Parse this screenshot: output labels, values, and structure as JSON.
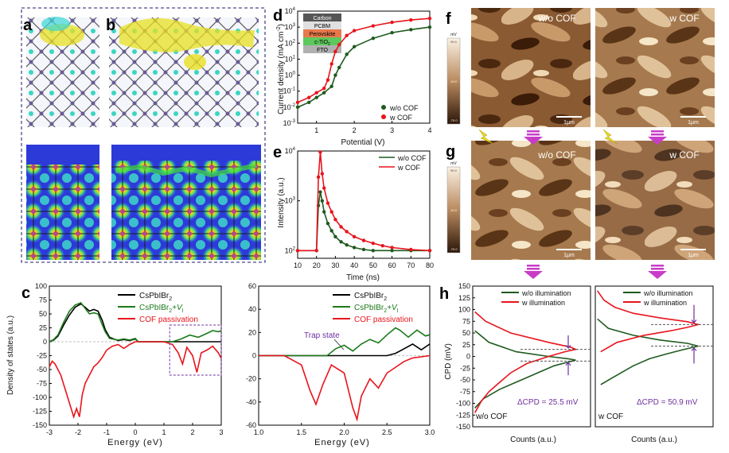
{
  "panel_letters": {
    "a": "a",
    "b": "b",
    "c": "c",
    "d": "d",
    "e": "e",
    "f": "f",
    "g": "g",
    "h": "h"
  },
  "colors": {
    "black": "#000000",
    "green": "#1a7a1a",
    "red": "#e8141c",
    "dark_green": "#1f5a1f",
    "purple": "#7030a0",
    "magenta_arrow": "#c83cc8",
    "frame": "#4a4a8a"
  },
  "panel_c": {
    "legend": [
      "CsPbIBr",
      "CsPbIBr2+V",
      "COF passivation"
    ],
    "legend_parts": {
      "cs": "CsPbIBr",
      "sub2": "2",
      "vi": "+V",
      "subi": "I"
    },
    "ylabel": "Density of states (a.u.)",
    "xlabel": "Energy (eV)",
    "trap_label": "Trap state"
  },
  "panel_d": {
    "ylabel": "Current density (mA cm",
    "ylabel_sup": "-2",
    "xlabel": "Potential (V)",
    "device_layers": [
      "Carbon",
      "PCBM",
      "Perovskite",
      "c-TiO",
      "FTO"
    ],
    "device_sub": "2",
    "legend": [
      "w/o COF",
      "w COF"
    ]
  },
  "panel_e": {
    "ylabel": "Intensity (a.u.)",
    "xlabel": "Time (ns)",
    "legend": [
      "w/o COF",
      "w COF"
    ]
  },
  "panel_fg": {
    "labels": [
      "w/o COF",
      "w COF"
    ],
    "scalebar": "1μm",
    "colorbar_unit": "mV",
    "colorbar_ticks": [
      "90.0",
      "10.0",
      "-70.0"
    ]
  },
  "panel_h": {
    "ylabel": "CPD (mV)",
    "xlabel": "Counts (a.u.)",
    "legend": [
      "w/o illumination",
      "w illumination"
    ],
    "dcpd_left": "ΔCPD = 25.5 mV",
    "dcpd_right": "ΔCPD = 50.9 mV",
    "left_label": "w/o COF",
    "right_label": "w COF"
  },
  "chart_data": [
    {
      "type": "line",
      "id": "c-left",
      "title": "",
      "xlabel": "Energy (eV)",
      "ylabel": "Density of states (a.u.)",
      "xlim": [
        -3,
        3
      ],
      "ylim": [
        -150,
        100
      ],
      "xticks": [
        -3,
        -2,
        -1,
        0,
        1,
        2,
        3
      ],
      "yticks": [
        -150,
        -125,
        -100,
        -75,
        -50,
        -25,
        0,
        25,
        50,
        75,
        100
      ],
      "series": [
        {
          "name": "CsPbIBr2",
          "color": "#000000",
          "x": [
            -3,
            -2.85,
            -2.7,
            -2.5,
            -2.3,
            -2.1,
            -1.9,
            -1.75,
            -1.6,
            -1.45,
            -1.3,
            -1.15,
            -1.05,
            -0.9,
            -0.6,
            -0.4,
            -0.2,
            0,
            0.1,
            0.2,
            0.5,
            1.0,
            1.5,
            2.0,
            2.5,
            3.0
          ],
          "y": [
            0,
            3,
            10,
            30,
            48,
            62,
            68,
            62,
            55,
            58,
            55,
            38,
            22,
            8,
            2,
            4,
            2,
            5,
            0,
            0,
            0,
            0,
            0,
            0,
            0,
            0
          ]
        },
        {
          "name": "CsPbIBr2+VI",
          "color": "#1a7a1a",
          "x": [
            -3,
            -2.85,
            -2.7,
            -2.5,
            -2.3,
            -2.1,
            -1.9,
            -1.75,
            -1.6,
            -1.45,
            -1.3,
            -1.15,
            -1.05,
            -0.9,
            -0.6,
            -0.4,
            -0.2,
            0,
            0.1,
            0.2,
            0.5,
            1.0,
            1.3,
            1.6,
            1.9,
            2.2,
            2.5,
            2.7,
            2.9,
            3.0
          ],
          "y": [
            0,
            4,
            12,
            35,
            55,
            66,
            70,
            60,
            50,
            52,
            50,
            30,
            18,
            6,
            3,
            5,
            3,
            6,
            0,
            0,
            0,
            0,
            0,
            5,
            12,
            8,
            15,
            20,
            18,
            20
          ]
        },
        {
          "name": "COF passivation",
          "color": "#e8141c",
          "x": [
            -3,
            -2.9,
            -2.8,
            -2.6,
            -2.45,
            -2.3,
            -2.15,
            -2.05,
            -1.95,
            -1.85,
            -1.75,
            -1.6,
            -1.45,
            -1.3,
            -1.15,
            -1.0,
            -0.8,
            -0.6,
            -0.4,
            -0.2,
            0,
            0.5,
            1.0,
            1.3,
            1.5,
            1.65,
            1.8,
            2.0,
            2.15,
            2.3,
            2.5,
            2.7,
            2.9,
            3.0
          ],
          "y": [
            -45,
            -35,
            -40,
            -60,
            -85,
            -110,
            -135,
            -120,
            -135,
            -95,
            -75,
            -60,
            -45,
            -38,
            -28,
            -15,
            -8,
            -5,
            -12,
            -5,
            0,
            0,
            0,
            -5,
            -20,
            -40,
            -10,
            -25,
            -55,
            -20,
            -15,
            -8,
            -20,
            -30
          ]
        }
      ]
    },
    {
      "type": "line",
      "id": "c-right",
      "title": "",
      "xlabel": "Energy (eV)",
      "ylabel": "",
      "xlim": [
        1.0,
        3.0
      ],
      "ylim": [
        -60,
        60
      ],
      "xticks": [
        1.0,
        1.5,
        2.0,
        2.5,
        3.0
      ],
      "yticks": [
        -60,
        -40,
        -20,
        0,
        20,
        40,
        60
      ],
      "annotation": "Trap state",
      "series": [
        {
          "name": "CsPbIBr2",
          "color": "#000000",
          "x": [
            1.0,
            1.5,
            2.0,
            2.5,
            2.6,
            2.7,
            2.8,
            2.9,
            3.0
          ],
          "y": [
            0,
            0,
            0,
            0,
            2,
            6,
            10,
            5,
            10
          ]
        },
        {
          "name": "CsPbIBr2+VI",
          "color": "#1a7a1a",
          "x": [
            1.0,
            1.5,
            1.8,
            1.9,
            2.0,
            2.1,
            2.2,
            2.3,
            2.4,
            2.5,
            2.6,
            2.65,
            2.75,
            2.85,
            2.95,
            3.0
          ],
          "y": [
            0,
            0,
            0,
            6,
            9,
            4,
            10,
            14,
            11,
            18,
            24,
            22,
            16,
            22,
            17,
            18
          ]
        },
        {
          "name": "COF passivation",
          "color": "#e8141c",
          "x": [
            1.0,
            1.3,
            1.5,
            1.6,
            1.67,
            1.75,
            1.85,
            2.0,
            2.1,
            2.15,
            2.2,
            2.3,
            2.4,
            2.5,
            2.6,
            2.7,
            2.8,
            3.0
          ],
          "y": [
            0,
            0,
            -8,
            -30,
            -42,
            -25,
            -8,
            -15,
            -45,
            -55,
            -35,
            -20,
            -28,
            -15,
            -10,
            -5,
            -2,
            0
          ]
        }
      ]
    },
    {
      "type": "scatter",
      "id": "d",
      "scale_y": "log",
      "xlabel": "Potential (V)",
      "ylabel": "Current density (mA cm-2)",
      "xlim": [
        0.5,
        4
      ],
      "ylim": [
        0.001,
        10000
      ],
      "xticks": [
        1,
        2,
        3,
        4
      ],
      "yticks": [
        0.001,
        0.01,
        0.1,
        1,
        10,
        100,
        1000,
        10000
      ],
      "series": [
        {
          "name": "w/o COF",
          "color": "#1f5a1f",
          "x": [
            0.5,
            0.8,
            1.0,
            1.2,
            1.4,
            1.5,
            1.6,
            1.8,
            2.0,
            2.5,
            3.0,
            3.5,
            4.0
          ],
          "y": [
            0.01,
            0.02,
            0.04,
            0.08,
            0.2,
            1,
            3,
            20,
            60,
            200,
            450,
            700,
            1000
          ]
        },
        {
          "name": "w COF",
          "color": "#e8141c",
          "x": [
            0.5,
            0.8,
            1.0,
            1.2,
            1.3,
            1.4,
            1.5,
            1.6,
            1.8,
            2.0,
            2.5,
            3.0,
            3.5,
            4.0
          ],
          "y": [
            0.02,
            0.04,
            0.08,
            0.15,
            0.5,
            5,
            30,
            80,
            300,
            600,
            1200,
            2000,
            2800,
            3500
          ]
        }
      ]
    },
    {
      "type": "line",
      "id": "e",
      "scale_y": "log",
      "xlabel": "Time (ns)",
      "ylabel": "Intensity (a.u.)",
      "xlim": [
        10,
        80
      ],
      "ylim": [
        70,
        10000
      ],
      "xticks": [
        10,
        20,
        30,
        40,
        50,
        60,
        70,
        80
      ],
      "yticks": [
        100,
        1000,
        10000
      ],
      "series": [
        {
          "name": "w/o COF",
          "color": "#1f5a1f",
          "x": [
            10,
            20,
            21,
            22,
            23,
            24,
            26,
            28,
            30,
            33,
            36,
            40,
            45,
            50,
            60,
            70,
            80
          ],
          "y": [
            100,
            100,
            800,
            1500,
            1000,
            600,
            350,
            250,
            190,
            150,
            130,
            115,
            105,
            100,
            100,
            100,
            100
          ]
        },
        {
          "name": "w COF",
          "color": "#e8141c",
          "x": [
            10,
            20,
            21,
            22,
            23,
            24,
            26,
            28,
            30,
            33,
            36,
            40,
            45,
            50,
            55,
            60,
            70,
            80
          ],
          "y": [
            100,
            100,
            3000,
            9500,
            3500,
            1800,
            900,
            600,
            420,
            300,
            240,
            190,
            160,
            140,
            125,
            115,
            105,
            100
          ]
        }
      ]
    },
    {
      "type": "line",
      "id": "h-left",
      "xlabel": "Counts (a.u.)",
      "ylabel": "CPD (mV)",
      "xlim": [
        0,
        1
      ],
      "ylim": [
        -150,
        150
      ],
      "yticks": [
        -150,
        -125,
        -100,
        -75,
        -50,
        -25,
        0,
        25,
        50,
        75,
        100,
        125,
        150
      ],
      "annotation": "ΔCPD = 25.5 mV",
      "series": [
        {
          "name": "w/o illumination",
          "color": "#1f5a1f",
          "cpd": [
            -110,
            -90,
            -70,
            -50,
            -35,
            -20,
            -12,
            -8,
            -5,
            0,
            10,
            30,
            55
          ],
          "counts": [
            0.02,
            0.1,
            0.25,
            0.45,
            0.6,
            0.75,
            0.88,
            0.95,
            0.88,
            0.7,
            0.4,
            0.15,
            0.02
          ]
        },
        {
          "name": "w illumination",
          "color": "#e8141c",
          "cpd": [
            -120,
            -95,
            -75,
            -55,
            -35,
            -15,
            0,
            10,
            15,
            20,
            30,
            50,
            75,
            95
          ],
          "counts": [
            0.02,
            0.08,
            0.15,
            0.25,
            0.35,
            0.5,
            0.7,
            0.85,
            0.95,
            0.9,
            0.7,
            0.35,
            0.12,
            0.02
          ]
        }
      ]
    },
    {
      "type": "line",
      "id": "h-right",
      "xlabel": "Counts (a.u.)",
      "ylabel": "",
      "xlim": [
        0,
        1
      ],
      "ylim": [
        -150,
        150
      ],
      "annotation": "ΔCPD = 50.9 mV",
      "series": [
        {
          "name": "w/o illumination",
          "color": "#1f5a1f",
          "cpd": [
            -60,
            -40,
            -20,
            -5,
            5,
            15,
            22,
            28,
            35,
            45,
            60,
            80
          ],
          "counts": [
            0.05,
            0.2,
            0.35,
            0.5,
            0.65,
            0.82,
            0.95,
            0.85,
            0.6,
            0.35,
            0.12,
            0.02
          ]
        },
        {
          "name": "w illumination",
          "color": "#e8141c",
          "cpd": [
            10,
            30,
            45,
            55,
            62,
            68,
            74,
            82,
            92,
            105,
            120,
            140
          ],
          "counts": [
            0.05,
            0.2,
            0.45,
            0.7,
            0.85,
            0.95,
            0.85,
            0.6,
            0.35,
            0.18,
            0.08,
            0.02
          ]
        }
      ]
    }
  ]
}
